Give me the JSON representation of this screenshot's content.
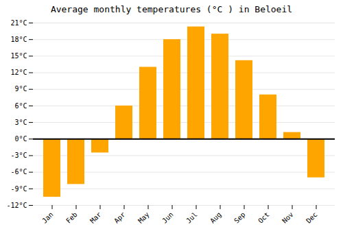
{
  "chart_data": {
    "type": "bar",
    "title": "Average monthly temperatures (°C ) in Beloeil",
    "categories": [
      "Jan",
      "Feb",
      "Mar",
      "Apr",
      "May",
      "Jun",
      "Jul",
      "Aug",
      "Sep",
      "Oct",
      "Nov",
      "Dec"
    ],
    "values": [
      -10.5,
      -8.2,
      -2.5,
      6.0,
      13.0,
      18.0,
      20.3,
      19.0,
      14.2,
      8.0,
      1.2,
      -7.0
    ],
    "color": "#FFA500",
    "ylim": [
      -12,
      21
    ],
    "yticks": [
      {
        "value": -12,
        "label": "-12°C"
      },
      {
        "value": -9,
        "label": "-9°C"
      },
      {
        "value": -6,
        "label": "-6°C"
      },
      {
        "value": -3,
        "label": "-3°C"
      },
      {
        "value": 0,
        "label": "0°C"
      },
      {
        "value": 3,
        "label": "3°C"
      },
      {
        "value": 6,
        "label": "6°C"
      },
      {
        "value": 9,
        "label": "9°C"
      },
      {
        "value": 12,
        "label": "12°C"
      },
      {
        "value": 15,
        "label": "15°C"
      },
      {
        "value": 18,
        "label": "18°C"
      },
      {
        "value": 21,
        "label": "21°C"
      }
    ],
    "grid": true
  }
}
